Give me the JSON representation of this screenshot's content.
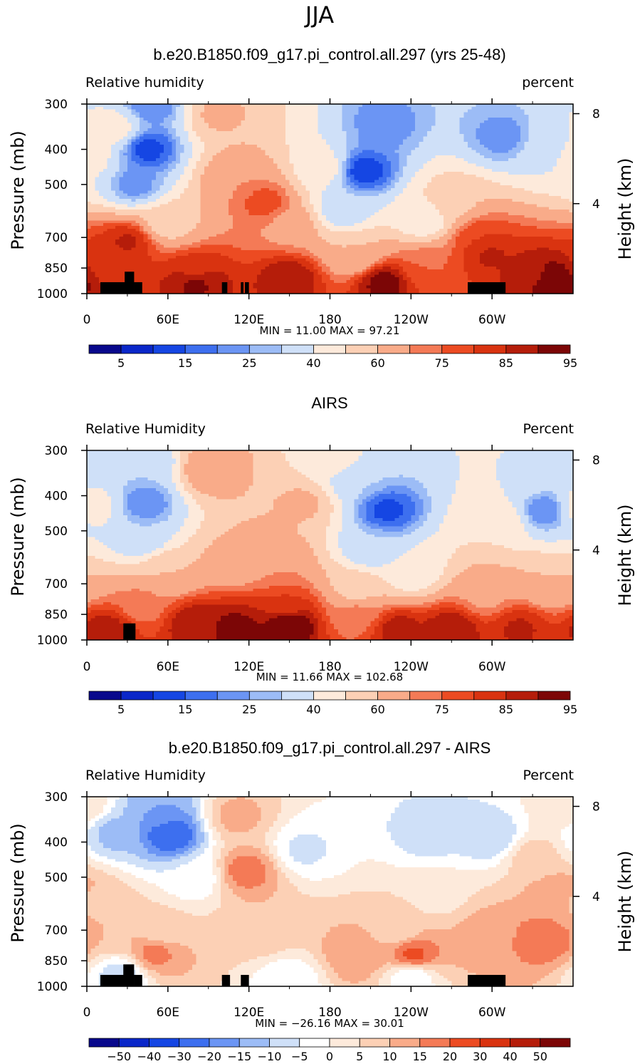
{
  "figure": {
    "title": "JJA"
  },
  "colors": {
    "rh_palette": [
      "#08088c",
      "#0a27c9",
      "#1546e3",
      "#3d6fef",
      "#6b95f4",
      "#9cbcf6",
      "#cfe0f8",
      "#fdeadb",
      "#fcd0b5",
      "#f9ab89",
      "#f47a56",
      "#ec4b22",
      "#d93310",
      "#b51d0a",
      "#7c0606"
    ],
    "diff_palette": [
      "#08088c",
      "#0a27c9",
      "#1546e3",
      "#3d6fef",
      "#6b95f4",
      "#9cbcf6",
      "#cfe0f8",
      "#ffffff",
      "#fdeadb",
      "#fcd0b5",
      "#f9ab89",
      "#f47a56",
      "#ec4b22",
      "#d93310",
      "#b51d0a",
      "#7c0606"
    ],
    "topography": "#000000"
  },
  "panels": [
    {
      "title": "b.e20.B1850.f09_g17.pi_control.all.297 (yrs 25-48)",
      "left_label": "Relative humidity",
      "right_label": "percent",
      "stats": "MIN =    11.00   MAX =    97.21",
      "colorbar_ticks": [
        "5",
        "15",
        "25",
        "40",
        "60",
        "75",
        "85",
        "95"
      ]
    },
    {
      "title": "AIRS",
      "left_label": "Relative Humidity",
      "right_label": "Percent",
      "stats": "MIN =    11.66   MAX =  102.68",
      "colorbar_ticks": [
        "5",
        "15",
        "25",
        "40",
        "60",
        "75",
        "85",
        "95"
      ]
    },
    {
      "title": "b.e20.B1850.f09_g17.pi_control.all.297 - AIRS",
      "left_label": "Relative Humidity",
      "right_label": "Percent",
      "stats": "MIN =  −26.16   MAX =    30.01",
      "colorbar_ticks": [
        "−50",
        "−40",
        "−30",
        "−20",
        "−15",
        "−10",
        "−5",
        "0",
        "5",
        "10",
        "15",
        "20",
        "30",
        "40",
        "50"
      ]
    }
  ],
  "chart_data": [
    {
      "type": "heatmap",
      "title": "b.e20.B1850.f09_g17.pi_control.all.297 (yrs 25-48)",
      "xlabel": "",
      "ylabel": "Pressure (mb)",
      "y2label": "Height (km)",
      "x_ticks": [
        "0",
        "60E",
        "120E",
        "180",
        "120W",
        "60W"
      ],
      "x_tick_values": [
        0,
        60,
        120,
        180,
        240,
        300
      ],
      "xlim": [
        0,
        360
      ],
      "y_ticks": [
        "300",
        "400",
        "500",
        "700",
        "850",
        "1000"
      ],
      "y_tick_values": [
        300,
        400,
        500,
        700,
        850,
        1000
      ],
      "ylim": [
        1000,
        300
      ],
      "y_scale": "log",
      "y2_ticks": [
        "4",
        "8"
      ],
      "y2_tick_values": [
        4,
        8
      ],
      "units": "percent",
      "levels": [
        5,
        10,
        15,
        20,
        25,
        30,
        40,
        50,
        60,
        70,
        75,
        80,
        85,
        90,
        95
      ],
      "min": 11.0,
      "max": 97.21,
      "features": [
        {
          "lon": 45,
          "p": 400,
          "value": 12
        },
        {
          "lon": 48,
          "p": 300,
          "value": 20
        },
        {
          "lon": 36,
          "p": 500,
          "value": 22
        },
        {
          "lon": 20,
          "p": 350,
          "value": 45
        },
        {
          "lon": 205,
          "p": 460,
          "value": 11
        },
        {
          "lon": 190,
          "p": 580,
          "value": 30
        },
        {
          "lon": 220,
          "p": 340,
          "value": 22
        },
        {
          "lon": 175,
          "p": 450,
          "value": 45
        },
        {
          "lon": 250,
          "p": 620,
          "value": 40
        },
        {
          "lon": 308,
          "p": 370,
          "value": 22
        },
        {
          "lon": 342,
          "p": 400,
          "value": 35
        },
        {
          "lon": 1,
          "p": 420,
          "value": 45
        },
        {
          "lon": 132,
          "p": 560,
          "value": 78
        },
        {
          "lon": 110,
          "p": 480,
          "value": 70
        },
        {
          "lon": 97,
          "p": 320,
          "value": 62
        },
        {
          "lon": 150,
          "p": 650,
          "value": 68
        },
        {
          "lon": 30,
          "p": 720,
          "value": 86
        },
        {
          "lon": 15,
          "p": 820,
          "value": 82
        },
        {
          "lon": 298,
          "p": 780,
          "value": 86
        },
        {
          "lon": 290,
          "p": 700,
          "value": 80
        },
        {
          "lon": 250,
          "p": 840,
          "value": 75
        },
        {
          "lon": 80,
          "p": 880,
          "value": 82
        },
        {
          "lon": 80,
          "p": 930,
          "value": 93
        },
        {
          "lon": 150,
          "p": 910,
          "value": 90
        },
        {
          "lon": 220,
          "p": 930,
          "value": 93
        },
        {
          "lon": 345,
          "p": 910,
          "value": 95
        },
        {
          "lon": 330,
          "p": 880,
          "value": 88
        },
        {
          "lon": 200,
          "p": 780,
          "value": 60
        },
        {
          "lon": 60,
          "p": 640,
          "value": 55
        },
        {
          "lon": 270,
          "p": 560,
          "value": 58
        }
      ],
      "topography": [
        {
          "lon_start": 10,
          "lon_end": 35,
          "p_top": 930
        },
        {
          "lon_start": 28,
          "lon_end": 35,
          "p_top": 870
        },
        {
          "lon_start": 35,
          "lon_end": 41,
          "p_top": 930
        },
        {
          "lon_start": 100,
          "lon_end": 104,
          "p_top": 930
        },
        {
          "lon_start": 114,
          "lon_end": 116,
          "p_top": 930
        },
        {
          "lon_start": 117,
          "lon_end": 120,
          "p_top": 930
        },
        {
          "lon_start": 282,
          "lon_end": 310,
          "p_top": 930
        }
      ]
    },
    {
      "type": "heatmap",
      "title": "AIRS",
      "xlabel": "",
      "ylabel": "Pressure (mb)",
      "y2label": "Height (km)",
      "x_ticks": [
        "0",
        "60E",
        "120E",
        "180",
        "120W",
        "60W"
      ],
      "x_tick_values": [
        0,
        60,
        120,
        180,
        240,
        300
      ],
      "xlim": [
        0,
        360
      ],
      "y_ticks": [
        "300",
        "400",
        "500",
        "700",
        "850",
        "1000"
      ],
      "y_tick_values": [
        300,
        400,
        500,
        700,
        850,
        1000
      ],
      "ylim": [
        1000,
        300
      ],
      "y_scale": "log",
      "y2_ticks": [
        "4",
        "8"
      ],
      "y2_tick_values": [
        4,
        8
      ],
      "units": "Percent",
      "levels": [
        5,
        10,
        15,
        20,
        25,
        30,
        40,
        50,
        60,
        70,
        75,
        80,
        85,
        90,
        95
      ],
      "min": 11.66,
      "max": 102.68,
      "features": [
        {
          "lon": 43,
          "p": 420,
          "value": 20
        },
        {
          "lon": 46,
          "p": 330,
          "value": 30
        },
        {
          "lon": 40,
          "p": 520,
          "value": 30
        },
        {
          "lon": 5,
          "p": 430,
          "value": 45
        },
        {
          "lon": 222,
          "p": 440,
          "value": 13
        },
        {
          "lon": 210,
          "p": 560,
          "value": 30
        },
        {
          "lon": 200,
          "p": 360,
          "value": 30
        },
        {
          "lon": 240,
          "p": 650,
          "value": 42
        },
        {
          "lon": 185,
          "p": 320,
          "value": 45
        },
        {
          "lon": 340,
          "p": 440,
          "value": 20
        },
        {
          "lon": 320,
          "p": 350,
          "value": 40
        },
        {
          "lon": 305,
          "p": 480,
          "value": 50
        },
        {
          "lon": 140,
          "p": 620,
          "value": 70
        },
        {
          "lon": 90,
          "p": 340,
          "value": 70
        },
        {
          "lon": 160,
          "p": 420,
          "value": 62
        },
        {
          "lon": 110,
          "p": 600,
          "value": 62
        },
        {
          "lon": 148,
          "p": 810,
          "value": 80
        },
        {
          "lon": 150,
          "p": 900,
          "value": 98
        },
        {
          "lon": 110,
          "p": 920,
          "value": 92
        },
        {
          "lon": 80,
          "p": 900,
          "value": 90
        },
        {
          "lon": 230,
          "p": 930,
          "value": 88
        },
        {
          "lon": 270,
          "p": 930,
          "value": 90
        },
        {
          "lon": 320,
          "p": 930,
          "value": 86
        },
        {
          "lon": 15,
          "p": 930,
          "value": 88
        },
        {
          "lon": 40,
          "p": 800,
          "value": 72
        },
        {
          "lon": 200,
          "p": 850,
          "value": 72
        },
        {
          "lon": 295,
          "p": 750,
          "value": 68
        },
        {
          "lon": 60,
          "p": 650,
          "value": 60
        },
        {
          "lon": 345,
          "p": 700,
          "value": 60
        },
        {
          "lon": 200,
          "p": 720,
          "value": 55
        }
      ],
      "topography": [
        {
          "lon_start": 27,
          "lon_end": 36,
          "p_top": 900
        }
      ]
    },
    {
      "type": "heatmap",
      "title": "b.e20.B1850.f09_g17.pi_control.all.297 - AIRS",
      "xlabel": "",
      "ylabel": "Pressure (mb)",
      "y2label": "Height (km)",
      "x_ticks": [
        "0",
        "60E",
        "120E",
        "180",
        "120W",
        "60W"
      ],
      "x_tick_values": [
        0,
        60,
        120,
        180,
        240,
        300
      ],
      "xlim": [
        0,
        360
      ],
      "y_ticks": [
        "300",
        "400",
        "500",
        "700",
        "850",
        "1000"
      ],
      "y_tick_values": [
        300,
        400,
        500,
        700,
        850,
        1000
      ],
      "ylim": [
        1000,
        300
      ],
      "y_scale": "log",
      "y2_ticks": [
        "4",
        "8"
      ],
      "y2_tick_values": [
        4,
        8
      ],
      "units": "Percent",
      "levels": [
        -50,
        -40,
        -30,
        -20,
        -15,
        -10,
        -5,
        0,
        5,
        10,
        15,
        20,
        30,
        40,
        50
      ],
      "min": -26.16,
      "max": 30.01,
      "features": [
        {
          "lon": 62,
          "p": 380,
          "value": -26
        },
        {
          "lon": 55,
          "p": 330,
          "value": -15
        },
        {
          "lon": 20,
          "p": 380,
          "value": -12
        },
        {
          "lon": 80,
          "p": 500,
          "value": -4
        },
        {
          "lon": 160,
          "p": 420,
          "value": -6
        },
        {
          "lon": 255,
          "p": 380,
          "value": -8
        },
        {
          "lon": 300,
          "p": 390,
          "value": -10
        },
        {
          "lon": 355,
          "p": 320,
          "value": 5
        },
        {
          "lon": 25,
          "p": 930,
          "value": -8
        },
        {
          "lon": 150,
          "p": 960,
          "value": -4
        },
        {
          "lon": 240,
          "p": 940,
          "value": -5
        },
        {
          "lon": 55,
          "p": 700,
          "value": 6
        },
        {
          "lon": 118,
          "p": 480,
          "value": 18
        },
        {
          "lon": 110,
          "p": 340,
          "value": 12
        },
        {
          "lon": 130,
          "p": 700,
          "value": 10
        },
        {
          "lon": 242,
          "p": 820,
          "value": 22
        },
        {
          "lon": 200,
          "p": 820,
          "value": 15
        },
        {
          "lon": 230,
          "p": 700,
          "value": 6
        },
        {
          "lon": 340,
          "p": 740,
          "value": 20
        },
        {
          "lon": 350,
          "p": 560,
          "value": 15
        },
        {
          "lon": 50,
          "p": 810,
          "value": 17
        },
        {
          "lon": 20,
          "p": 700,
          "value": 10
        },
        {
          "lon": 298,
          "p": 720,
          "value": 14
        },
        {
          "lon": 2,
          "p": 580,
          "value": 8
        },
        {
          "lon": 330,
          "p": 440,
          "value": 8
        },
        {
          "lon": 260,
          "p": 560,
          "value": 3
        }
      ],
      "topography": [
        {
          "lon_start": 10,
          "lon_end": 35,
          "p_top": 930
        },
        {
          "lon_start": 27,
          "lon_end": 35,
          "p_top": 870
        },
        {
          "lon_start": 35,
          "lon_end": 41,
          "p_top": 930
        },
        {
          "lon_start": 100,
          "lon_end": 106,
          "p_top": 930
        },
        {
          "lon_start": 114,
          "lon_end": 120,
          "p_top": 930
        },
        {
          "lon_start": 282,
          "lon_end": 310,
          "p_top": 930
        }
      ]
    }
  ]
}
